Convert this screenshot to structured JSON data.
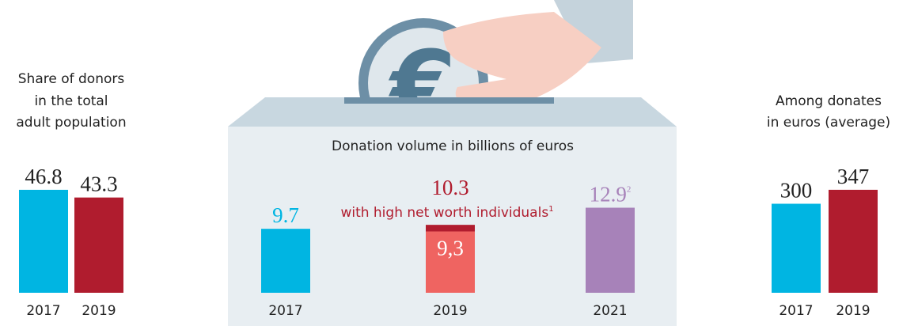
{
  "chart_data": [
    {
      "type": "bar",
      "title": [
        "Share of donors",
        "in the total",
        "adult population"
      ],
      "categories": [
        "2017",
        "2019"
      ],
      "values": [
        46.8,
        43.3
      ],
      "colors": [
        "#00b5e2",
        "#b01c2e"
      ],
      "ylim": [
        0,
        50
      ]
    },
    {
      "type": "stacked_bar",
      "title": [
        "Donation volume in billions of euros"
      ],
      "categories": [
        "2017",
        "2019",
        "2021"
      ],
      "series": [
        {
          "values": [
            9.7,
            9.3,
            12.9
          ],
          "value_labels": [
            "9.7",
            "9,3",
            "12.9"
          ],
          "colors": [
            "#00b5e2",
            "#ef6461",
            "#a782b9"
          ]
        },
        {
          "name": "with high net worth individuals",
          "footnote": "1",
          "color": "#b01c2e",
          "values": [
            null,
            1.0,
            null
          ]
        }
      ],
      "totals": [
        null,
        10.3,
        null
      ],
      "footnotes": [
        null,
        null,
        "2"
      ],
      "ylim": [
        0,
        15
      ]
    },
    {
      "type": "bar",
      "title": [
        "Among donates",
        "in euros (average)"
      ],
      "categories": [
        "2017",
        "2019"
      ],
      "values": [
        300,
        347
      ],
      "colors": [
        "#00b5e2",
        "#b01c2e"
      ],
      "ylim": [
        0,
        400
      ]
    }
  ]
}
